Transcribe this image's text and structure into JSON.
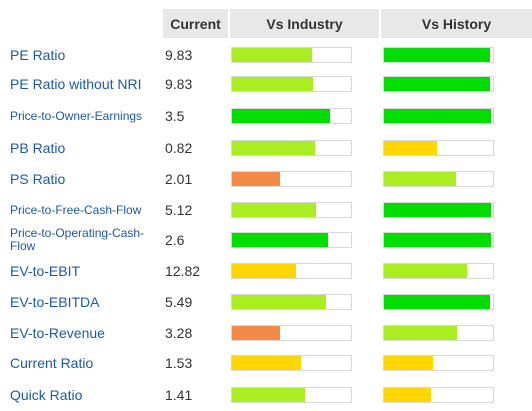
{
  "header": {
    "current": "Current",
    "vs_industry": "Vs Industry",
    "vs_history": "Vs History"
  },
  "colors": {
    "green": "#00dd00",
    "lightgreen": "#aaee22",
    "yellow": "#ffd700",
    "orange": "#f48a48",
    "link": "#1a5aa8"
  },
  "rows": [
    {
      "label": "PE Ratio",
      "size": "big",
      "value": "9.83",
      "industry": {
        "pct": 0.67,
        "color": "lightgreen"
      },
      "history": {
        "pct": 0.97,
        "color": "green"
      }
    },
    {
      "label": "PE Ratio without NRI",
      "size": "big",
      "value": "9.83",
      "industry": {
        "pct": 0.68,
        "color": "lightgreen"
      },
      "history": {
        "pct": 0.97,
        "color": "green"
      }
    },
    {
      "label": "Price-to-Owner-Earnings",
      "size": "small",
      "value": "3.5",
      "industry": {
        "pct": 0.82,
        "color": "green"
      },
      "history": {
        "pct": 0.98,
        "color": "green"
      }
    },
    {
      "label": "PB Ratio",
      "size": "big",
      "value": "0.82",
      "industry": {
        "pct": 0.7,
        "color": "lightgreen"
      },
      "history": {
        "pct": 0.49,
        "color": "yellow"
      }
    },
    {
      "label": "PS Ratio",
      "size": "big",
      "value": "2.01",
      "industry": {
        "pct": 0.4,
        "color": "orange"
      },
      "history": {
        "pct": 0.66,
        "color": "lightgreen"
      }
    },
    {
      "label": "Price-to-Free-Cash-Flow",
      "size": "small",
      "value": "5.12",
      "industry": {
        "pct": 0.71,
        "color": "lightgreen"
      },
      "history": {
        "pct": 0.98,
        "color": "green"
      }
    },
    {
      "label": "Price-to-Operating-Cash-Flow",
      "size": "small",
      "value": "2.6",
      "industry": {
        "pct": 0.81,
        "color": "green"
      },
      "history": {
        "pct": 0.98,
        "color": "green"
      }
    },
    {
      "label": "EV-to-EBIT",
      "size": "big",
      "value": "12.82",
      "industry": {
        "pct": 0.54,
        "color": "yellow"
      },
      "history": {
        "pct": 0.76,
        "color": "lightgreen"
      }
    },
    {
      "label": "EV-to-EBITDA",
      "size": "big",
      "value": "5.49",
      "industry": {
        "pct": 0.79,
        "color": "lightgreen"
      },
      "history": {
        "pct": 0.97,
        "color": "green"
      }
    },
    {
      "label": "EV-to-Revenue",
      "size": "big",
      "value": "3.28",
      "industry": {
        "pct": 0.4,
        "color": "orange"
      },
      "history": {
        "pct": 0.67,
        "color": "lightgreen"
      }
    },
    {
      "label": "Current Ratio",
      "size": "big",
      "value": "1.53",
      "industry": {
        "pct": 0.58,
        "color": "yellow"
      },
      "history": {
        "pct": 0.45,
        "color": "yellow"
      }
    },
    {
      "label": "Quick Ratio",
      "size": "big",
      "value": "1.41",
      "industry": {
        "pct": 0.61,
        "color": "lightgreen"
      },
      "history": {
        "pct": 0.43,
        "color": "yellow"
      }
    }
  ]
}
